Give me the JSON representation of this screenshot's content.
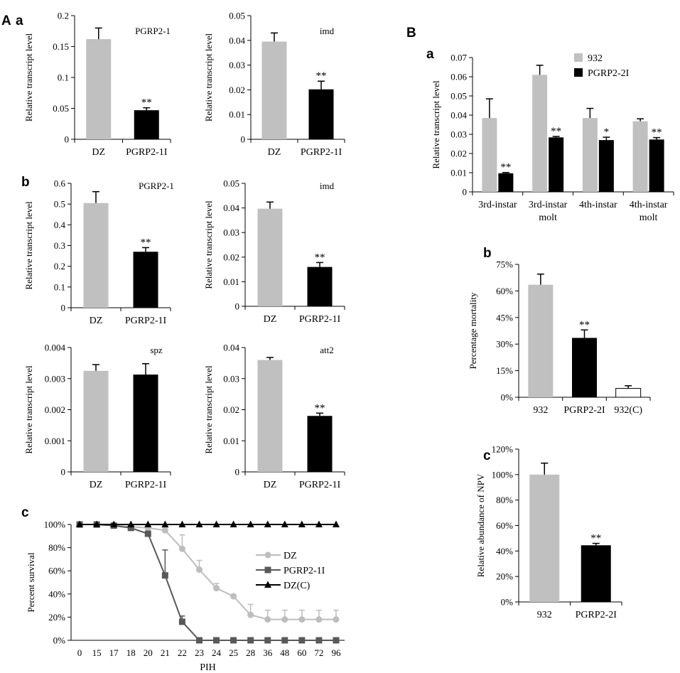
{
  "panel_labels": {
    "A": "A",
    "B": "B",
    "Aa": "a",
    "Ab": "b",
    "Ac": "c",
    "Ba": "a",
    "Bb": "b",
    "Bc": "c"
  },
  "colors": {
    "gray": "#c0c0c0",
    "black": "#000000",
    "white": "#ffffff",
    "line_gray": "#bdbdbd",
    "line_dark": "#595959"
  },
  "chart_data": [
    {
      "id": "Aa1",
      "type": "bar",
      "title": "PGRP2-1",
      "ylabel": "Relative transcript level",
      "categories": [
        "DZ",
        "PGRP2-1I"
      ],
      "values": [
        0.162,
        0.047
      ],
      "errors": [
        0.018,
        0.004
      ],
      "stars": [
        "",
        "**"
      ],
      "ylim": [
        0,
        0.2
      ],
      "yticks": [
        "0",
        "0.05",
        "0.1",
        "0.15",
        "0.2"
      ]
    },
    {
      "id": "Aa2",
      "type": "bar",
      "title": "imd",
      "ylabel": "Relative transcript level",
      "categories": [
        "DZ",
        "PGRP2-1I"
      ],
      "values": [
        0.0395,
        0.0202
      ],
      "errors": [
        0.0035,
        0.0033
      ],
      "stars": [
        "",
        "**"
      ],
      "ylim": [
        0,
        0.05
      ],
      "yticks": [
        "0",
        "0.01",
        "0.02",
        "0.03",
        "0.04",
        "0.05"
      ]
    },
    {
      "id": "Ab1",
      "type": "bar",
      "title": "PGRP2-1",
      "ylabel": "Relative transcript level",
      "categories": [
        "DZ",
        "PGRP2-1I"
      ],
      "values": [
        0.505,
        0.27
      ],
      "errors": [
        0.055,
        0.02
      ],
      "stars": [
        "",
        "**"
      ],
      "ylim": [
        0,
        0.6
      ],
      "yticks": [
        "0",
        "0.1",
        "0.2",
        "0.3",
        "0.4",
        "0.5",
        "0.6"
      ]
    },
    {
      "id": "Ab2",
      "type": "bar",
      "title": "imd",
      "ylabel": "Relative transcript level",
      "categories": [
        "DZ",
        "PGRP2-1I"
      ],
      "values": [
        0.0397,
        0.016
      ],
      "errors": [
        0.0027,
        0.0018
      ],
      "stars": [
        "",
        "**"
      ],
      "ylim": [
        0,
        0.05
      ],
      "yticks": [
        "0",
        "0.01",
        "0.02",
        "0.03",
        "0.04",
        "0.05"
      ]
    },
    {
      "id": "Ab3",
      "type": "bar",
      "title": "spz",
      "ylabel": "Relative transcript level",
      "categories": [
        "DZ",
        "PGRP2-1I"
      ],
      "values": [
        0.00325,
        0.00313
      ],
      "errors": [
        0.0002,
        0.00035
      ],
      "stars": [
        "",
        ""
      ],
      "ylim": [
        0,
        0.004
      ],
      "yticks": [
        "0",
        "0.001",
        "0.002",
        "0.003",
        "0.004"
      ]
    },
    {
      "id": "Ab4",
      "type": "bar",
      "title": "att2",
      "ylabel": "Relative transcript level",
      "categories": [
        "DZ",
        "PGRP2-1I"
      ],
      "values": [
        0.036,
        0.018
      ],
      "errors": [
        0.0008,
        0.0009
      ],
      "stars": [
        "",
        "**"
      ],
      "ylim": [
        0,
        0.04
      ],
      "yticks": [
        "0",
        "0.01",
        "0.02",
        "0.03",
        "0.04"
      ]
    },
    {
      "id": "Ac",
      "type": "line",
      "xlabel": "PIH",
      "ylabel": "Percent survival",
      "x": [
        "0",
        "15",
        "17",
        "18",
        "20",
        "21",
        "22",
        "23",
        "24",
        "25",
        "28",
        "36",
        "48",
        "60",
        "72",
        "96"
      ],
      "ylim": [
        0,
        100
      ],
      "yticks": [
        "0%",
        "20%",
        "40%",
        "60%",
        "80%",
        "100%"
      ],
      "series": [
        {
          "name": "DZ",
          "marker": "circle",
          "values": [
            100,
            100,
            99,
            98,
            97,
            95,
            79,
            61,
            45,
            38,
            22,
            18,
            18,
            18,
            18,
            18
          ],
          "errors": [
            0,
            0,
            0,
            0,
            0,
            2,
            12,
            8,
            4,
            0,
            9,
            8,
            8,
            8,
            8,
            8
          ]
        },
        {
          "name": "PGRP2-1I",
          "marker": "square",
          "values": [
            100,
            100,
            99,
            97,
            92,
            56,
            16,
            0,
            0,
            0,
            0,
            0,
            0,
            0,
            0,
            0
          ],
          "errors": [
            0,
            0,
            0,
            0,
            0,
            22,
            5,
            0,
            0,
            0,
            0,
            0,
            0,
            0,
            0,
            0
          ]
        },
        {
          "name": "DZ(C)",
          "marker": "triangle",
          "values": [
            100,
            100,
            100,
            100,
            100,
            100,
            100,
            100,
            100,
            100,
            100,
            100,
            100,
            100,
            100,
            100
          ],
          "errors": [
            0,
            0,
            0,
            0,
            0,
            0,
            0,
            0,
            0,
            0,
            0,
            0,
            0,
            0,
            0,
            0
          ]
        }
      ]
    },
    {
      "id": "Ba",
      "type": "bar",
      "ylabel": "Relative transcript level",
      "categories": [
        "3rd-instar",
        "3rd-instar molt",
        "4th-instar",
        "4th-instar molt"
      ],
      "ylim": [
        0,
        0.07
      ],
      "yticks": [
        "0",
        "0.01",
        "0.02",
        "0.03",
        "0.04",
        "0.05",
        "0.06",
        "0.07"
      ],
      "series": [
        {
          "name": "932",
          "values": [
            0.0385,
            0.061,
            0.0385,
            0.0368
          ],
          "errors": [
            0.01,
            0.005,
            0.005,
            0.0013
          ],
          "stars": [
            "",
            "",
            "",
            ""
          ]
        },
        {
          "name": "PGRP2-2I",
          "values": [
            0.0097,
            0.0284,
            0.027,
            0.0273
          ],
          "errors": [
            0.0004,
            0.0005,
            0.0015,
            0.001
          ],
          "stars": [
            "**",
            "**",
            "*",
            "**"
          ]
        }
      ]
    },
    {
      "id": "Bb",
      "type": "bar",
      "ylabel": "Percentage  mortality",
      "categories": [
        "932",
        "PGRP2-2I",
        "932(C)"
      ],
      "values": [
        63.5,
        33.5,
        5
      ],
      "errors": [
        6,
        4.5,
        1.5
      ],
      "stars": [
        "",
        "**",
        ""
      ],
      "ylim": [
        0,
        75
      ],
      "yticks": [
        "0%",
        "15%",
        "30%",
        "45%",
        "60%",
        "75%"
      ]
    },
    {
      "id": "Bc",
      "type": "bar",
      "ylabel": "Relative abundance of  NPV",
      "categories": [
        "932",
        "PGRP2-2I"
      ],
      "values": [
        100,
        44.5
      ],
      "errors": [
        9,
        1.5
      ],
      "stars": [
        "",
        "**"
      ],
      "ylim": [
        0,
        120
      ],
      "yticks": [
        "0%",
        "20%",
        "40%",
        "60%",
        "80%",
        "100%",
        "120%"
      ]
    }
  ]
}
